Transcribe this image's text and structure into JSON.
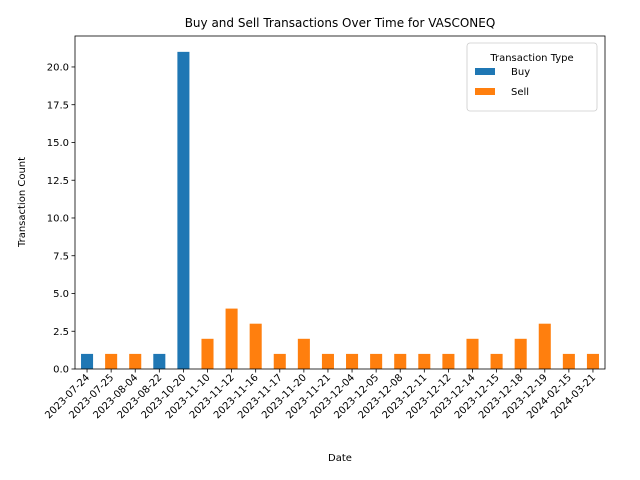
{
  "chart_data": {
    "type": "bar",
    "title": "Buy and Sell Transactions Over Time for VASCONEQ",
    "xlabel": "Date",
    "ylabel": "Transaction Count",
    "categories": [
      "2023-07-24",
      "2023-07-25",
      "2023-08-04",
      "2023-08-22",
      "2023-10-20",
      "2023-11-10",
      "2023-11-12",
      "2023-11-16",
      "2023-11-17",
      "2023-11-20",
      "2023-11-21",
      "2023-12-04",
      "2023-12-05",
      "2023-12-08",
      "2023-12-11",
      "2023-12-12",
      "2023-12-14",
      "2023-12-15",
      "2023-12-18",
      "2023-12-19",
      "2024-02-15",
      "2024-03-21"
    ],
    "series": [
      {
        "name": "Buy",
        "color": "#1f77b4",
        "values": [
          1,
          0,
          0,
          1,
          21,
          0,
          0,
          0,
          0,
          0,
          0,
          0,
          0,
          0,
          0,
          0,
          0,
          0,
          0,
          0,
          0,
          0
        ]
      },
      {
        "name": "Sell",
        "color": "#ff7f0e",
        "values": [
          0,
          1,
          1,
          0,
          0,
          2,
          4,
          3,
          1,
          2,
          1,
          1,
          1,
          1,
          1,
          1,
          2,
          1,
          2,
          3,
          1,
          1
        ]
      }
    ],
    "stacked": true,
    "ylim": [
      0,
      22.05
    ],
    "yticks": [
      "0.0",
      "2.5",
      "5.0",
      "7.5",
      "10.0",
      "12.5",
      "15.0",
      "17.5",
      "20.0"
    ],
    "legend": {
      "title": "Transaction Type",
      "placement": "top-right"
    },
    "grid": false
  }
}
